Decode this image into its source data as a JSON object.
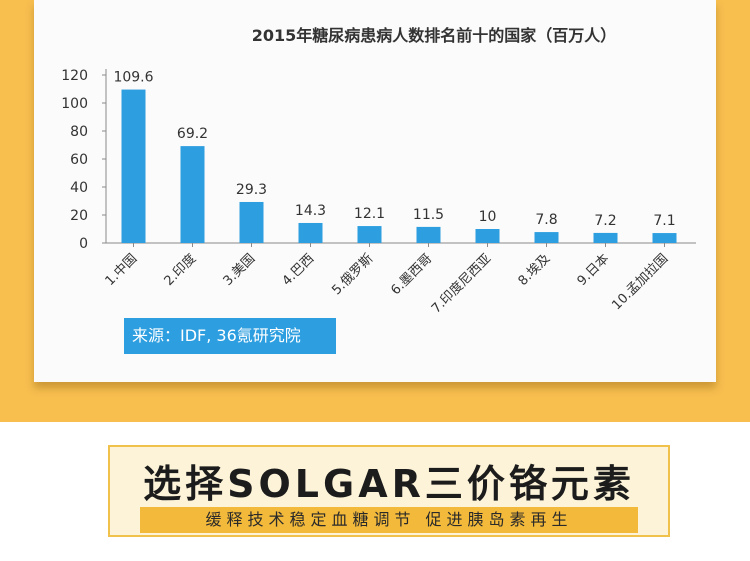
{
  "chart_data": {
    "type": "bar",
    "title": "2015年糖尿病患病人数排名前十的国家（百万人）",
    "categories": [
      "1.中国",
      "2.印度",
      "3.美国",
      "4.巴西",
      "5.俄罗斯",
      "6.墨西哥",
      "7.印度尼西亚",
      "8.埃及",
      "9.日本",
      "10.孟加拉国"
    ],
    "values": [
      109.6,
      69.2,
      29.3,
      14.3,
      12.1,
      11.5,
      10,
      7.8,
      7.2,
      7.1
    ],
    "value_labels": [
      "109.6",
      "69.2",
      "29.3",
      "14.3",
      "12.1",
      "11.5",
      "10",
      "7.8",
      "7.2",
      "7.1"
    ],
    "yticks": [
      0,
      20,
      40,
      60,
      80,
      100,
      120
    ],
    "ylim": [
      0,
      120
    ],
    "grid": false,
    "bar_color": "#2d9ee0",
    "source": "来源：IDF, 36氪研究院"
  },
  "banner": {
    "title": "选择SOLGAR三价铬元素",
    "subtitle": "缓释技术稳定血糖调节  促进胰岛素再生"
  },
  "colors": {
    "background_band": "#f8bf4f",
    "banner_border": "#f1c24b",
    "banner_fill": "#fdf3d8",
    "subtitle_fill": "#f3b93a"
  }
}
